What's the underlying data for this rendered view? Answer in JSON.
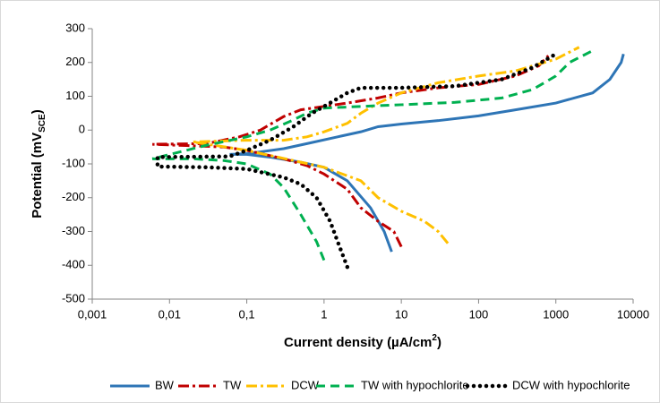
{
  "chart_data": {
    "type": "line",
    "ylabel": [
      "Potential (mV",
      "SCE",
      ")"
    ],
    "xlabel": [
      "Current density (µA/cm",
      "2",
      ")"
    ],
    "xscale": "log",
    "xlim": [
      0.001,
      10000
    ],
    "xticks": [
      {
        "value": 0.001,
        "label": "0,001"
      },
      {
        "value": 0.01,
        "label": "0,01"
      },
      {
        "value": 0.1,
        "label": "0,1"
      },
      1,
      10,
      100,
      1000,
      10000
    ],
    "ylim": [
      -500,
      300
    ],
    "yticks": [
      -500,
      -400,
      -300,
      -200,
      -100,
      0,
      100,
      200,
      300
    ],
    "legend": "bottom",
    "series": [
      {
        "name": "BW",
        "color": "#2E75B6",
        "dash": "solid",
        "x": [
          7.5,
          6,
          4,
          2,
          1,
          0.5,
          0.2,
          0.1,
          0.06,
          0.1,
          0.3,
          0.6,
          1.5,
          3,
          5,
          10,
          30,
          100,
          300,
          1000,
          3000,
          5000,
          7000,
          7500
        ],
        "values": [
          -360,
          -300,
          -230,
          -150,
          -110,
          -95,
          -80,
          -72,
          -72,
          -70,
          -55,
          -40,
          -20,
          -5,
          10,
          18,
          28,
          42,
          60,
          80,
          110,
          150,
          200,
          225
        ]
      },
      {
        "name": "TW",
        "color": "#C00000",
        "dash": "dashdot",
        "x": [
          10,
          8,
          5,
          3,
          2,
          1,
          0.6,
          0.3,
          0.1,
          0.05,
          0.006,
          0.03,
          0.08,
          0.15,
          0.3,
          0.5,
          1,
          2,
          5,
          10,
          30,
          100,
          300,
          600,
          800
        ],
        "values": [
          -345,
          -300,
          -270,
          -230,
          -175,
          -130,
          -105,
          -85,
          -60,
          -50,
          -42,
          -40,
          -20,
          0,
          40,
          60,
          70,
          80,
          95,
          110,
          125,
          135,
          160,
          190,
          220
        ]
      },
      {
        "name": "DCW",
        "color": "#FFC000",
        "dash": "dashdot",
        "x": [
          40,
          30,
          20,
          10,
          5,
          3,
          1,
          0.5,
          0.1,
          0.02,
          0.1,
          0.3,
          0.6,
          1,
          2,
          3,
          5,
          10,
          30,
          100,
          300,
          1000,
          2000
        ],
        "values": [
          -335,
          -300,
          -270,
          -240,
          -200,
          -150,
          -110,
          -95,
          -60,
          -35,
          -30,
          -30,
          -20,
          -5,
          20,
          50,
          80,
          110,
          140,
          160,
          175,
          210,
          245
        ]
      },
      {
        "name": "TW with hypochlorite",
        "color": "#00B050",
        "dash": "dashed",
        "x": [
          1,
          0.8,
          0.5,
          0.3,
          0.2,
          0.1,
          0.05,
          0.02,
          0.006,
          0.03,
          0.1,
          0.2,
          0.4,
          0.6,
          1,
          3,
          10,
          50,
          200,
          500,
          1000,
          1500,
          3000
        ],
        "values": [
          -385,
          -330,
          -250,
          -170,
          -130,
          -100,
          -90,
          -85,
          -85,
          -45,
          -20,
          0,
          30,
          50,
          65,
          70,
          75,
          82,
          95,
          120,
          160,
          200,
          235
        ]
      },
      {
        "name": "DCW with hypochlorite",
        "color": "#000000",
        "dash": "dotted",
        "x": [
          2,
          1.5,
          1.2,
          0.8,
          0.5,
          0.3,
          0.1,
          0.03,
          0.007,
          0.007,
          0.06,
          0.1,
          0.2,
          0.4,
          0.7,
          1,
          2,
          3,
          10,
          50,
          200,
          500,
          1000
        ],
        "values": [
          -405,
          -330,
          -270,
          -200,
          -160,
          -140,
          -115,
          -110,
          -108,
          -80,
          -78,
          -60,
          -30,
          10,
          50,
          70,
          110,
          125,
          125,
          130,
          150,
          185,
          225
        ]
      }
    ]
  }
}
